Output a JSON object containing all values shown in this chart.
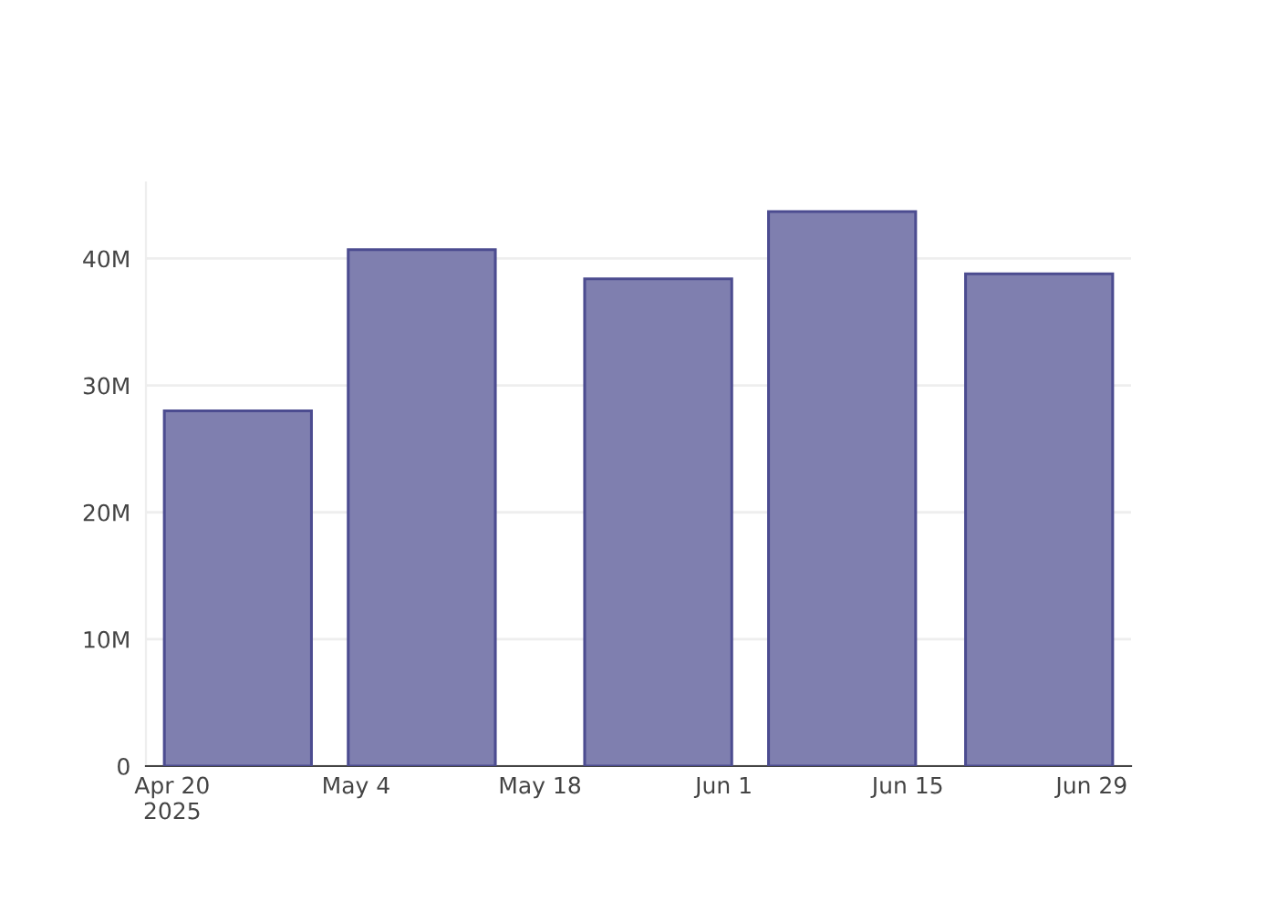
{
  "chart_data": {
    "type": "bar",
    "x": [
      "2025-04-25",
      "2025-05-09",
      "2025-05-27",
      "2025-06-10",
      "2025-06-25"
    ],
    "values": [
      28000000,
      40700000,
      38400000,
      43700000,
      38800000
    ],
    "color": "#7f7faf",
    "xlim": [
      "2025-04-18",
      "2025-07-02"
    ],
    "xticks": [
      {
        "value": "2025-04-20",
        "label": "Apr 20\n2025"
      },
      {
        "value": "2025-05-04",
        "label": "May 4"
      },
      {
        "value": "2025-05-18",
        "label": "May 18"
      },
      {
        "value": "2025-06-01",
        "label": "Jun 1"
      },
      {
        "value": "2025-06-15",
        "label": "Jun 15"
      },
      {
        "value": "2025-06-29",
        "label": "Jun 29"
      }
    ],
    "ylim": [
      0,
      46000000
    ],
    "yticks": [
      {
        "value": 0,
        "label": "0"
      },
      {
        "value": 10000000,
        "label": "10M"
      },
      {
        "value": 20000000,
        "label": "20M"
      },
      {
        "value": 30000000,
        "label": "30M"
      },
      {
        "value": 40000000,
        "label": "40M"
      }
    ],
    "grid": "y"
  }
}
